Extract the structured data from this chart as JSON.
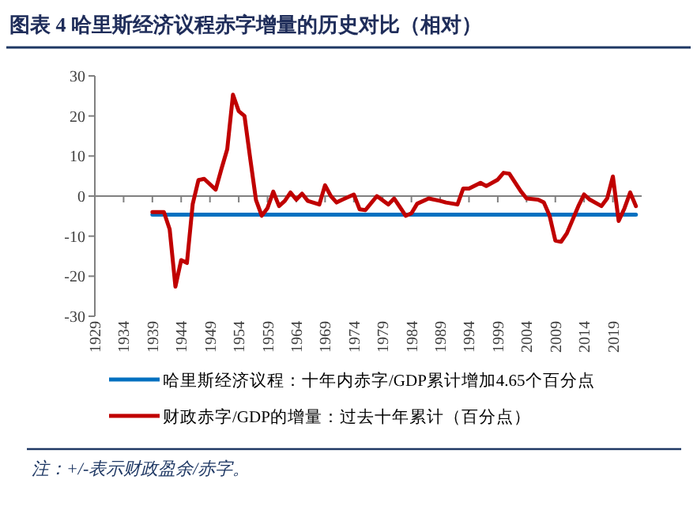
{
  "chart_data": {
    "type": "line",
    "title": "图表 4   哈里斯经济议程赤字增量的历史对比（相对）",
    "xlim": [
      1929,
      2024
    ],
    "xticks": [
      1929,
      1934,
      1939,
      1944,
      1949,
      1954,
      1959,
      1964,
      1969,
      1974,
      1979,
      1984,
      1989,
      1994,
      1999,
      2004,
      2009,
      2014,
      2019
    ],
    "ylim": [
      -30,
      30
    ],
    "yticks": [
      -30,
      -20,
      -10,
      0,
      10,
      20,
      30
    ],
    "legend": "bottom",
    "series": [
      {
        "name": "哈里斯经济议程：十年内赤字/GDP累计增加4.65个百分点",
        "color": "#0070c0",
        "x": [
          1939,
          2023
        ],
        "values": [
          -4.65,
          -4.65
        ]
      },
      {
        "name": "财政赤字/GDP的增量：过去十年累计（百分点）",
        "color": "#c00000",
        "x": [
          1939,
          1941,
          1942,
          1943,
          1944,
          1945,
          1946,
          1947,
          1948,
          1950,
          1951,
          1952,
          1953,
          1954,
          1955,
          1956,
          1957,
          1958,
          1959,
          1960,
          1961,
          1962,
          1963,
          1964,
          1965,
          1966,
          1968,
          1969,
          1970,
          1971,
          1972,
          1974,
          1975,
          1976,
          1978,
          1980,
          1981,
          1983,
          1984,
          1985,
          1987,
          1989,
          1990,
          1992,
          1993,
          1994,
          1996,
          1997,
          1999,
          2000,
          2001,
          2003,
          2004,
          2006,
          2007,
          2008,
          2009,
          2010,
          2011,
          2013,
          2014,
          2015,
          2017,
          2018,
          2019,
          2020,
          2021,
          2022,
          2023
        ],
        "values": [
          -4,
          -4,
          -8.3,
          -22.6,
          -16,
          -16.7,
          -2,
          4,
          4.3,
          1.6,
          6.8,
          11.7,
          25.3,
          21.2,
          20,
          9.3,
          -1,
          -4.9,
          -3,
          1.1,
          -2.5,
          -1.2,
          0.9,
          -0.9,
          0.6,
          -1.2,
          -2.1,
          2.7,
          0,
          -1.6,
          -0.9,
          0.4,
          -3.3,
          -3.5,
          0,
          -2.1,
          -0.6,
          -4.9,
          -4.3,
          -1.9,
          -0.6,
          -1.2,
          -1.6,
          -2.1,
          1.9,
          1.9,
          3.3,
          2.5,
          4.1,
          5.8,
          5.6,
          1.2,
          -0.6,
          -0.9,
          -1.6,
          -4.9,
          -11.1,
          -11.4,
          -9.3,
          -2.5,
          0.4,
          -0.9,
          -2.5,
          -0.6,
          4.9,
          -6.2,
          -3.1,
          0.9,
          -2.5
        ]
      }
    ],
    "annotations": [
      "注：+/-表示财政盈余/赤字。"
    ]
  }
}
